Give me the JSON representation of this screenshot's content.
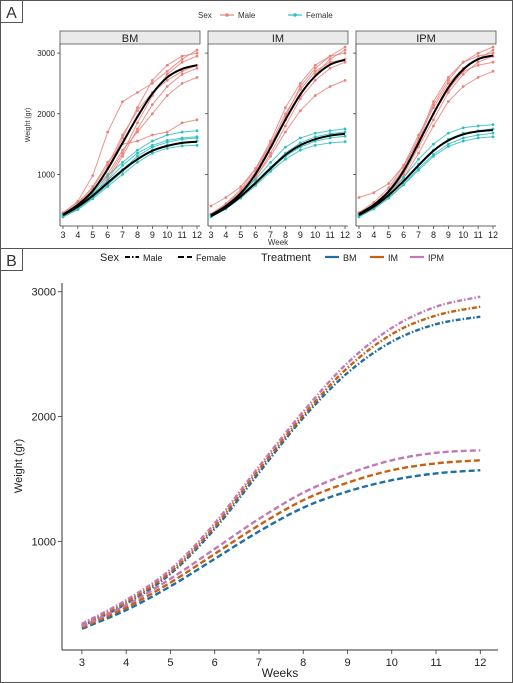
{
  "panels": {
    "a_tag": "A",
    "b_tag": "B"
  },
  "chart_data": [
    {
      "type": "line",
      "panel": "A",
      "facets": [
        "BM",
        "IM",
        "IPM"
      ],
      "legend": {
        "title": "Sex",
        "entries": [
          {
            "label": "Male",
            "color": "#e8837b"
          },
          {
            "label": "Female",
            "color": "#2fbfbf"
          }
        ],
        "placement": "top"
      },
      "xlabel": "Week",
      "ylabel": "Weight (gr)",
      "x": [
        3,
        4,
        5,
        6,
        7,
        8,
        9,
        10,
        11,
        12
      ],
      "x_ticks": [
        "3",
        "4",
        "5",
        "6",
        "7",
        "8",
        "9",
        "10",
        "11",
        "12"
      ],
      "y_ticks": [
        "1000",
        "2000",
        "3000"
      ],
      "xlim": [
        2.8,
        12.2
      ],
      "ylim": [
        150,
        3150
      ],
      "grid": false,
      "fit_color": "#000000",
      "series": [
        {
          "facet": "BM",
          "sex": "Male",
          "fit": true,
          "values": [
            340,
            500,
            730,
            1090,
            1520,
            1950,
            2330,
            2600,
            2740,
            2800
          ]
        },
        {
          "facet": "BM",
          "sex": "Female",
          "fit": true,
          "values": [
            330,
            470,
            650,
            860,
            1070,
            1250,
            1390,
            1470,
            1520,
            1540
          ]
        },
        {
          "facet": "IM",
          "sex": "Male",
          "fit": true,
          "values": [
            330,
            480,
            690,
            1010,
            1440,
            1900,
            2320,
            2620,
            2810,
            2890
          ]
        },
        {
          "facet": "IM",
          "sex": "Female",
          "fit": true,
          "values": [
            310,
            450,
            640,
            860,
            1100,
            1320,
            1480,
            1580,
            1640,
            1670
          ]
        },
        {
          "facet": "IPM",
          "sex": "Male",
          "fit": true,
          "values": [
            350,
            500,
            720,
            1060,
            1520,
            2000,
            2430,
            2730,
            2900,
            2960
          ]
        },
        {
          "facet": "IPM",
          "sex": "Female",
          "fit": true,
          "values": [
            330,
            470,
            660,
            890,
            1150,
            1390,
            1560,
            1660,
            1710,
            1730
          ]
        },
        {
          "facet": "BM",
          "sex": "Male",
          "values": [
            360,
            560,
            980,
            1700,
            2200,
            2350,
            2500,
            2700,
            2900,
            3050
          ]
        },
        {
          "facet": "BM",
          "sex": "Male",
          "values": [
            330,
            470,
            700,
            1100,
            1600,
            2100,
            2550,
            2800,
            2950,
            3000
          ]
        },
        {
          "facet": "BM",
          "sex": "Male",
          "values": [
            320,
            440,
            620,
            900,
            1300,
            1750,
            2150,
            2450,
            2650,
            2750
          ]
        },
        {
          "facet": "BM",
          "sex": "Male",
          "values": [
            350,
            500,
            750,
            1000,
            1400,
            1700,
            2000,
            2300,
            2500,
            2600
          ]
        },
        {
          "facet": "BM",
          "sex": "Male",
          "values": [
            340,
            520,
            800,
            1200,
            1500,
            1550,
            1650,
            1700,
            1850,
            1900
          ]
        },
        {
          "facet": "BM",
          "sex": "Male",
          "values": [
            300,
            430,
            650,
            950,
            1350,
            1850,
            2300,
            2650,
            2850,
            2950
          ]
        },
        {
          "facet": "BM",
          "sex": "Male",
          "values": [
            370,
            540,
            780,
            1150,
            1650,
            2050,
            2350,
            2550,
            2700,
            2800
          ]
        },
        {
          "facet": "BM",
          "sex": "Female",
          "values": [
            330,
            480,
            700,
            980,
            1200,
            1400,
            1550,
            1650,
            1700,
            1720
          ]
        },
        {
          "facet": "BM",
          "sex": "Female",
          "values": [
            310,
            440,
            620,
            830,
            1050,
            1250,
            1400,
            1480,
            1520,
            1550
          ]
        },
        {
          "facet": "BM",
          "sex": "Female",
          "values": [
            300,
            420,
            600,
            800,
            1000,
            1200,
            1350,
            1430,
            1470,
            1480
          ]
        },
        {
          "facet": "BM",
          "sex": "Female",
          "values": [
            340,
            500,
            680,
            900,
            1150,
            1350,
            1480,
            1560,
            1600,
            1620
          ]
        },
        {
          "facet": "BM",
          "sex": "Female",
          "values": [
            320,
            460,
            650,
            860,
            1080,
            1300,
            1450,
            1530,
            1580,
            1600
          ]
        },
        {
          "facet": "IM",
          "sex": "Male",
          "values": [
            480,
            620,
            800,
            1100,
            1500,
            1900,
            2300,
            2650,
            2900,
            3050
          ]
        },
        {
          "facet": "IM",
          "sex": "Male",
          "values": [
            330,
            470,
            680,
            1000,
            1450,
            1950,
            2450,
            2750,
            2950,
            3100
          ]
        },
        {
          "facet": "IM",
          "sex": "Male",
          "values": [
            310,
            440,
            650,
            950,
            1350,
            1800,
            2250,
            2550,
            2750,
            2850
          ]
        },
        {
          "facet": "IM",
          "sex": "Male",
          "values": [
            340,
            500,
            720,
            1050,
            1500,
            2000,
            2400,
            2700,
            2850,
            2900
          ]
        },
        {
          "facet": "IM",
          "sex": "Male",
          "values": [
            320,
            460,
            660,
            950,
            1300,
            1700,
            2050,
            2300,
            2450,
            2550
          ]
        },
        {
          "facet": "IM",
          "sex": "Male",
          "values": [
            350,
            520,
            750,
            1100,
            1550,
            2100,
            2500,
            2800,
            2950,
            3000
          ]
        },
        {
          "facet": "IM",
          "sex": "Female",
          "values": [
            330,
            480,
            680,
            920,
            1200,
            1450,
            1600,
            1680,
            1720,
            1750
          ]
        },
        {
          "facet": "IM",
          "sex": "Female",
          "values": [
            300,
            430,
            610,
            820,
            1050,
            1250,
            1400,
            1480,
            1520,
            1540
          ]
        },
        {
          "facet": "IM",
          "sex": "Female",
          "values": [
            320,
            470,
            660,
            880,
            1120,
            1350,
            1520,
            1620,
            1670,
            1700
          ]
        },
        {
          "facet": "IM",
          "sex": "Female",
          "values": [
            310,
            450,
            630,
            850,
            1080,
            1300,
            1450,
            1550,
            1600,
            1630
          ]
        },
        {
          "facet": "IPM",
          "sex": "Male",
          "values": [
            620,
            700,
            850,
            1150,
            1550,
            2150,
            2550,
            2850,
            3000,
            3100
          ]
        },
        {
          "facet": "IPM",
          "sex": "Male",
          "values": [
            360,
            510,
            740,
            1100,
            1600,
            2200,
            2600,
            2850,
            2950,
            3000
          ]
        },
        {
          "facet": "IPM",
          "sex": "Male",
          "values": [
            330,
            470,
            680,
            1000,
            1450,
            1900,
            2350,
            2650,
            2850,
            2950
          ]
        },
        {
          "facet": "IPM",
          "sex": "Male",
          "values": [
            340,
            490,
            710,
            1050,
            1500,
            2000,
            2400,
            2700,
            2800,
            2850
          ]
        },
        {
          "facet": "IPM",
          "sex": "Male",
          "values": [
            320,
            450,
            650,
            950,
            1350,
            1800,
            2200,
            2450,
            2600,
            2700
          ]
        },
        {
          "facet": "IPM",
          "sex": "Male",
          "values": [
            370,
            540,
            780,
            1150,
            1650,
            2100,
            2500,
            2750,
            2900,
            3050
          ]
        },
        {
          "facet": "IPM",
          "sex": "Female",
          "values": [
            340,
            490,
            700,
            950,
            1250,
            1500,
            1680,
            1770,
            1800,
            1820
          ]
        },
        {
          "facet": "IPM",
          "sex": "Female",
          "values": [
            310,
            440,
            620,
            840,
            1100,
            1330,
            1500,
            1600,
            1650,
            1680
          ]
        },
        {
          "facet": "IPM",
          "sex": "Female",
          "values": [
            330,
            470,
            670,
            900,
            1170,
            1400,
            1580,
            1680,
            1720,
            1750
          ]
        },
        {
          "facet": "IPM",
          "sex": "Female",
          "values": [
            300,
            430,
            610,
            830,
            1070,
            1300,
            1460,
            1550,
            1600,
            1620
          ]
        }
      ]
    },
    {
      "type": "line",
      "panel": "B",
      "legend": {
        "placement": "top",
        "sex_title": "Sex",
        "sex_entries": [
          {
            "label": "Male",
            "dash": "dashdot"
          },
          {
            "label": "Female",
            "dash": "dash"
          }
        ],
        "treatment_title": "Treatment",
        "treatment_entries": [
          {
            "label": "BM",
            "color": "#1f6fa3"
          },
          {
            "label": "IM",
            "color": "#c8600f"
          },
          {
            "label": "IPM",
            "color": "#c27ab6"
          }
        ]
      },
      "xlabel": "Weeks",
      "ylabel": "Weight (gr)",
      "x": [
        3,
        4,
        5,
        6,
        7,
        8,
        9,
        10,
        11,
        12
      ],
      "x_ticks": [
        "3",
        "4",
        "5",
        "6",
        "7",
        "8",
        "9",
        "10",
        "11",
        "12"
      ],
      "y_ticks": [
        "1000",
        "2000",
        "3000"
      ],
      "xlim": [
        2.55,
        12.4
      ],
      "ylim": [
        130,
        3070
      ],
      "grid": false,
      "series": [
        {
          "treatment": "BM",
          "sex": "Male",
          "values": [
            320,
            500,
            740,
            1100,
            1550,
            1990,
            2350,
            2600,
            2740,
            2800
          ]
        },
        {
          "treatment": "IM",
          "sex": "Male",
          "values": [
            330,
            515,
            755,
            1120,
            1575,
            2010,
            2390,
            2660,
            2810,
            2880
          ]
        },
        {
          "treatment": "IPM",
          "sex": "Male",
          "values": [
            340,
            530,
            775,
            1145,
            1600,
            2040,
            2430,
            2710,
            2880,
            2960
          ]
        },
        {
          "treatment": "BM",
          "sex": "Female",
          "values": [
            300,
            450,
            640,
            860,
            1080,
            1270,
            1400,
            1490,
            1545,
            1570
          ]
        },
        {
          "treatment": "IM",
          "sex": "Female",
          "values": [
            310,
            470,
            670,
            900,
            1130,
            1330,
            1470,
            1570,
            1625,
            1650
          ]
        },
        {
          "treatment": "IPM",
          "sex": "Female",
          "values": [
            320,
            490,
            700,
            940,
            1180,
            1390,
            1540,
            1650,
            1710,
            1730
          ]
        }
      ]
    }
  ]
}
